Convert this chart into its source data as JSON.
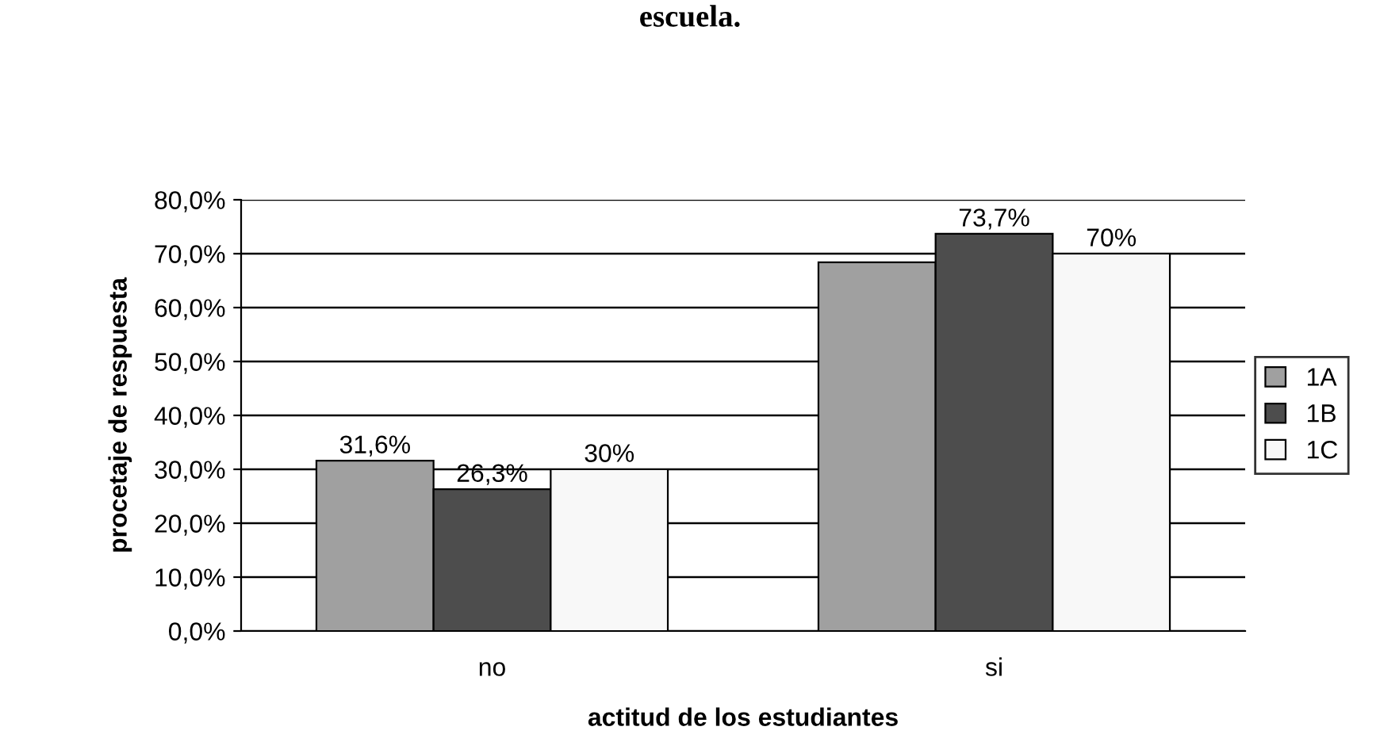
{
  "chart_data": {
    "type": "bar",
    "title": "escuela.",
    "xlabel": "actitud de los estudiantes",
    "ylabel": "procetaje de respuesta",
    "categories": [
      "no",
      "si"
    ],
    "series": [
      {
        "name": "1A",
        "color": "#a0a0a0",
        "values": [
          31.6,
          68.4
        ],
        "value_labels": [
          "31,6%",
          null
        ]
      },
      {
        "name": "1B",
        "color": "#4d4d4d",
        "values": [
          26.3,
          73.7
        ],
        "value_labels": [
          "26,3%",
          "73,7%"
        ]
      },
      {
        "name": "1C",
        "color": "#f8f8f8",
        "values": [
          30,
          70
        ],
        "value_labels": [
          "30%",
          "70%"
        ]
      }
    ],
    "ylim": [
      0,
      80
    ],
    "yticks": [
      {
        "value": 0,
        "label": "0,0%"
      },
      {
        "value": 10,
        "label": "10,0%"
      },
      {
        "value": 20,
        "label": "20,0%"
      },
      {
        "value": 30,
        "label": "30,0%"
      },
      {
        "value": 40,
        "label": "40,0%"
      },
      {
        "value": 50,
        "label": "50,0%"
      },
      {
        "value": 60,
        "label": "60,0%"
      },
      {
        "value": 70,
        "label": "70,0%"
      },
      {
        "value": 80,
        "label": "80,0%"
      }
    ],
    "grid": "y",
    "legend": "right"
  }
}
